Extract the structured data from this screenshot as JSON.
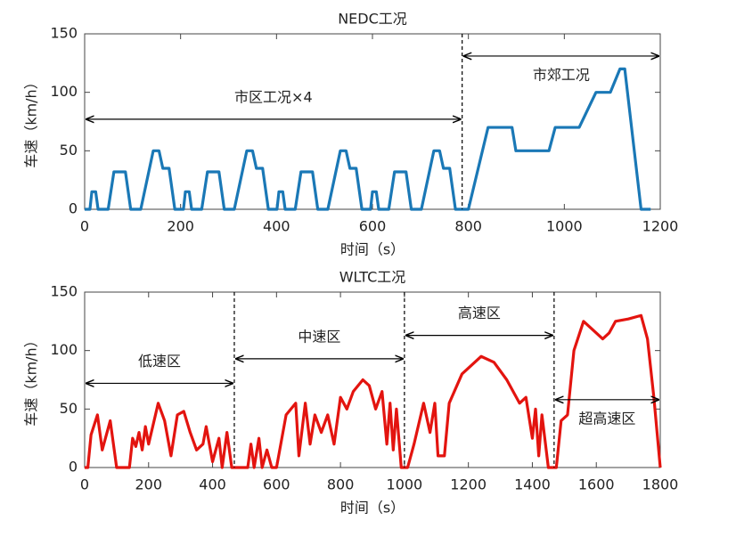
{
  "chart_data": [
    {
      "type": "line",
      "title": "NEDC工况",
      "xlabel": "时间（s）",
      "ylabel": "车速（km/h）",
      "xlim": [
        0,
        1200
      ],
      "ylim": [
        0,
        150
      ],
      "xticks": [
        0,
        200,
        400,
        600,
        800,
        1000,
        1200
      ],
      "yticks": [
        0,
        50,
        100,
        150
      ],
      "series": [
        {
          "name": "NEDC",
          "color": "#1a78b6",
          "x": [
            0,
            11,
            15,
            23,
            28,
            49,
            61,
            85,
            96,
            117,
            143,
            155,
            163,
            176,
            188,
            195,
            206,
            210,
            218,
            223,
            244,
            256,
            280,
            291,
            312,
            338,
            350,
            358,
            371,
            383,
            390,
            401,
            405,
            413,
            418,
            439,
            451,
            475,
            486,
            507,
            533,
            545,
            553,
            566,
            578,
            585,
            596,
            600,
            608,
            613,
            634,
            646,
            670,
            681,
            702,
            728,
            740,
            748,
            761,
            773,
            780,
            800,
            841,
            891,
            899,
            968,
            981,
            1031,
            1066,
            1096,
            1116,
            1126,
            1160,
            1180
          ],
          "values": [
            0,
            0,
            15,
            15,
            0,
            0,
            32,
            32,
            0,
            0,
            50,
            50,
            35,
            35,
            0,
            0,
            0,
            15,
            15,
            0,
            0,
            32,
            32,
            0,
            0,
            50,
            50,
            35,
            35,
            0,
            0,
            0,
            15,
            15,
            0,
            0,
            32,
            32,
            0,
            0,
            50,
            50,
            35,
            35,
            0,
            0,
            0,
            15,
            15,
            0,
            0,
            32,
            32,
            0,
            0,
            50,
            50,
            35,
            35,
            0,
            0,
            0,
            70,
            70,
            50,
            50,
            70,
            70,
            100,
            100,
            120,
            120,
            0,
            0
          ]
        }
      ],
      "dividers": [
        787
      ],
      "annotations": [
        {
          "text": "市区工况×4",
          "x": [
            0,
            787
          ],
          "y": 77,
          "label_position": "above"
        },
        {
          "text": "市郊工况",
          "x": [
            787,
            1200
          ],
          "y": 131,
          "label_position": "below"
        }
      ]
    },
    {
      "type": "line",
      "title": "WLTC工况",
      "xlabel": "时间（s）",
      "ylabel": "车速（km/h）",
      "xlim": [
        0,
        1800
      ],
      "ylim": [
        0,
        150
      ],
      "xticks": [
        0,
        200,
        400,
        600,
        800,
        1000,
        1200,
        1400,
        1600,
        1800
      ],
      "yticks": [
        0,
        50,
        100,
        150
      ],
      "series": [
        {
          "name": "WLTC",
          "color": "#e3140f",
          "x": [
            0,
            10,
            20,
            40,
            55,
            80,
            100,
            140,
            150,
            160,
            170,
            180,
            190,
            200,
            230,
            250,
            270,
            290,
            310,
            330,
            350,
            370,
            380,
            400,
            420,
            430,
            445,
            460,
            468,
            510,
            520,
            530,
            545,
            555,
            570,
            585,
            600,
            630,
            660,
            670,
            690,
            705,
            720,
            740,
            760,
            780,
            800,
            820,
            840,
            870,
            890,
            910,
            930,
            945,
            955,
            965,
            975,
            990,
            1010,
            1030,
            1060,
            1080,
            1095,
            1105,
            1125,
            1140,
            1180,
            1240,
            1280,
            1320,
            1360,
            1380,
            1400,
            1410,
            1420,
            1430,
            1450,
            1475,
            1490,
            1510,
            1530,
            1560,
            1600,
            1620,
            1640,
            1660,
            1700,
            1740,
            1760,
            1780,
            1800
          ],
          "values": [
            0,
            0,
            28,
            45,
            15,
            40,
            0,
            0,
            25,
            18,
            30,
            15,
            35,
            20,
            55,
            40,
            10,
            45,
            48,
            30,
            15,
            20,
            35,
            5,
            25,
            0,
            30,
            0,
            0,
            0,
            20,
            0,
            25,
            0,
            15,
            0,
            0,
            45,
            55,
            10,
            55,
            20,
            45,
            30,
            45,
            20,
            60,
            50,
            65,
            75,
            70,
            50,
            65,
            20,
            55,
            15,
            50,
            0,
            0,
            20,
            55,
            30,
            55,
            10,
            10,
            55,
            80,
            95,
            90,
            75,
            55,
            60,
            25,
            50,
            10,
            45,
            0,
            0,
            40,
            45,
            100,
            125,
            115,
            110,
            115,
            125,
            127,
            130,
            110,
            60,
            0
          ]
        }
      ],
      "dividers": [
        468,
        1000,
        1468
      ],
      "annotations": [
        {
          "text": "低速区",
          "x": [
            0,
            468
          ],
          "y": 72,
          "label_position": "above"
        },
        {
          "text": "中速区",
          "x": [
            468,
            1000
          ],
          "y": 93,
          "label_position": "above"
        },
        {
          "text": "高速区",
          "x": [
            1000,
            1468
          ],
          "y": 113,
          "label_position": "above"
        },
        {
          "text": "超高速区",
          "x": [
            1468,
            1800
          ],
          "y": 58,
          "label_position": "below"
        }
      ]
    }
  ]
}
